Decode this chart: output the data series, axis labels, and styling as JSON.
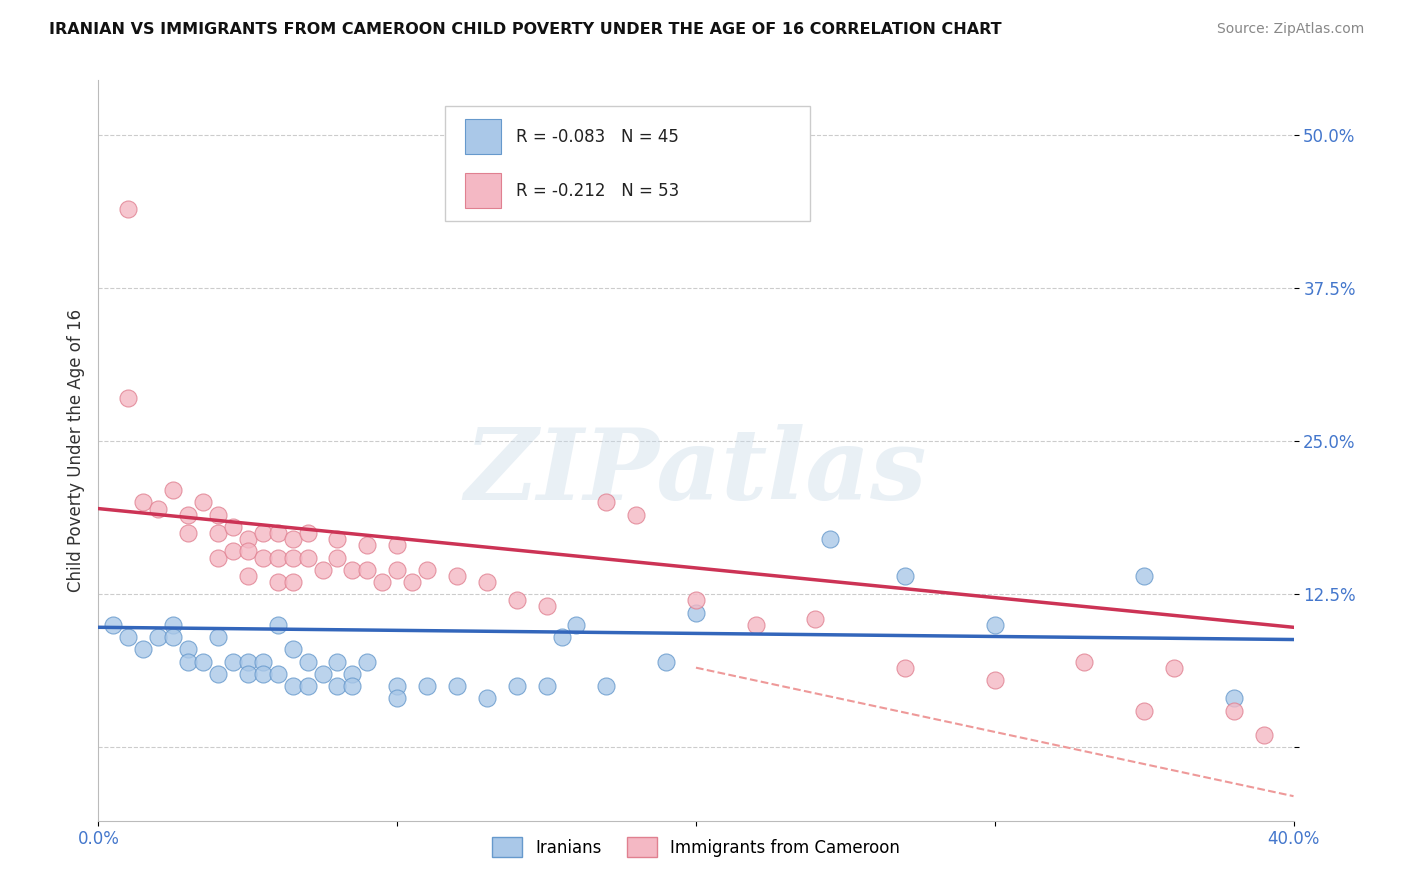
{
  "title": "IRANIAN VS IMMIGRANTS FROM CAMEROON CHILD POVERTY UNDER THE AGE OF 16 CORRELATION CHART",
  "source": "Source: ZipAtlas.com",
  "ylabel": "Child Poverty Under the Age of 16",
  "x_min": 0.0,
  "x_max": 0.4,
  "y_min": -0.06,
  "y_max": 0.545,
  "y_ticks": [
    0.0,
    0.125,
    0.25,
    0.375,
    0.5
  ],
  "y_tick_labels": [
    "",
    "12.5%",
    "25.0%",
    "37.5%",
    "50.0%"
  ],
  "x_ticks": [
    0.0,
    0.1,
    0.2,
    0.3,
    0.4
  ],
  "x_tick_labels": [
    "0.0%",
    "",
    "",
    "",
    "40.0%"
  ],
  "grid_color": "#cccccc",
  "bg_color": "#ffffff",
  "watermark_text": "ZIPatlas",
  "legend_R1": "-0.083",
  "legend_N1": "45",
  "legend_R2": "-0.212",
  "legend_N2": "53",
  "iran_color": "#aac8e8",
  "cam_color": "#f4b8c4",
  "iran_edge": "#6699cc",
  "cam_edge": "#e08090",
  "trend_blue": "#3366bb",
  "trend_pink": "#cc3355",
  "trend_dashed_color": "#ee9999",
  "tick_color": "#4477cc",
  "iran_x": [
    0.005,
    0.01,
    0.015,
    0.02,
    0.025,
    0.025,
    0.03,
    0.03,
    0.035,
    0.04,
    0.04,
    0.045,
    0.05,
    0.05,
    0.055,
    0.055,
    0.06,
    0.06,
    0.065,
    0.065,
    0.07,
    0.07,
    0.075,
    0.08,
    0.08,
    0.085,
    0.085,
    0.09,
    0.1,
    0.1,
    0.11,
    0.12,
    0.13,
    0.14,
    0.15,
    0.155,
    0.16,
    0.17,
    0.19,
    0.2,
    0.245,
    0.27,
    0.3,
    0.35,
    0.38
  ],
  "iran_y": [
    0.1,
    0.09,
    0.08,
    0.09,
    0.1,
    0.09,
    0.08,
    0.07,
    0.07,
    0.09,
    0.06,
    0.07,
    0.07,
    0.06,
    0.07,
    0.06,
    0.1,
    0.06,
    0.08,
    0.05,
    0.07,
    0.05,
    0.06,
    0.07,
    0.05,
    0.06,
    0.05,
    0.07,
    0.05,
    0.04,
    0.05,
    0.05,
    0.04,
    0.05,
    0.05,
    0.09,
    0.1,
    0.05,
    0.07,
    0.11,
    0.17,
    0.14,
    0.1,
    0.14,
    0.04
  ],
  "cam_x": [
    0.01,
    0.01,
    0.015,
    0.02,
    0.025,
    0.03,
    0.03,
    0.035,
    0.04,
    0.04,
    0.04,
    0.045,
    0.045,
    0.05,
    0.05,
    0.05,
    0.055,
    0.055,
    0.06,
    0.06,
    0.06,
    0.065,
    0.065,
    0.065,
    0.07,
    0.07,
    0.075,
    0.08,
    0.08,
    0.085,
    0.09,
    0.09,
    0.095,
    0.1,
    0.1,
    0.105,
    0.11,
    0.12,
    0.13,
    0.14,
    0.15,
    0.17,
    0.18,
    0.2,
    0.22,
    0.24,
    0.27,
    0.3,
    0.33,
    0.35,
    0.36,
    0.38,
    0.39
  ],
  "cam_y": [
    0.44,
    0.285,
    0.2,
    0.195,
    0.21,
    0.19,
    0.175,
    0.2,
    0.19,
    0.175,
    0.155,
    0.18,
    0.16,
    0.17,
    0.16,
    0.14,
    0.175,
    0.155,
    0.175,
    0.155,
    0.135,
    0.17,
    0.155,
    0.135,
    0.175,
    0.155,
    0.145,
    0.17,
    0.155,
    0.145,
    0.165,
    0.145,
    0.135,
    0.165,
    0.145,
    0.135,
    0.145,
    0.14,
    0.135,
    0.12,
    0.115,
    0.2,
    0.19,
    0.12,
    0.1,
    0.105,
    0.065,
    0.055,
    0.07,
    0.03,
    0.065,
    0.03,
    0.01
  ],
  "blue_line_x0": 0.0,
  "blue_line_y0": 0.098,
  "blue_line_x1": 0.4,
  "blue_line_y1": 0.088,
  "pink_line_x0": 0.0,
  "pink_line_y0": 0.195,
  "pink_line_x1": 0.4,
  "pink_line_y1": 0.098,
  "dash_line_x0": 0.2,
  "dash_line_y0": 0.065,
  "dash_line_x1": 0.4,
  "dash_line_y1": -0.04
}
